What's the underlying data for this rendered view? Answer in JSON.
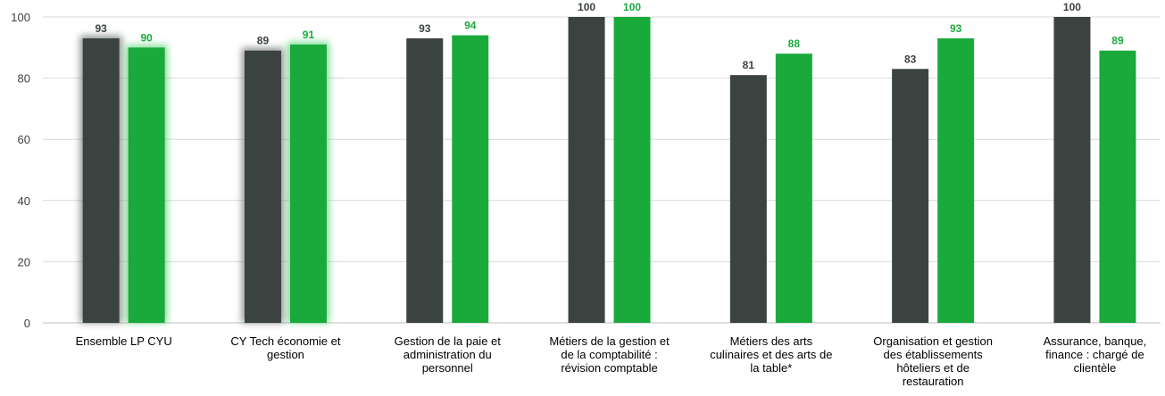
{
  "chart_data": {
    "type": "bar",
    "title": "",
    "xlabel": "",
    "ylabel": "",
    "ylim": [
      0,
      100
    ],
    "yticks": [
      0,
      20,
      40,
      60,
      80,
      100
    ],
    "grid": true,
    "legend": "none",
    "categories": [
      [
        "Ensemble LP CYU"
      ],
      [
        "CY Tech économie et",
        "gestion"
      ],
      [
        "Gestion de la paie et",
        "administration du",
        "personnel"
      ],
      [
        "Métiers de la gestion et",
        "de la comptabilité :",
        "révision comptable"
      ],
      [
        "Métiers des arts",
        "culinaires et des arts de",
        "la table*"
      ],
      [
        "Organisation et gestion",
        "des établissements",
        "hôteliers et de",
        "restauration"
      ],
      [
        "Assurance, banque,",
        "finance : chargé de",
        "clientèle"
      ]
    ],
    "highlighted_categories": [
      0,
      1
    ],
    "series": [
      {
        "values": [
          93,
          89,
          93,
          100,
          81,
          83,
          100
        ],
        "color": "#3b4340"
      },
      {
        "values": [
          90,
          91,
          94,
          100,
          88,
          93,
          89
        ],
        "color": "#1aaa3c"
      }
    ],
    "value_label_colors": [
      "#3b4340",
      "#1aaa3c"
    ]
  }
}
